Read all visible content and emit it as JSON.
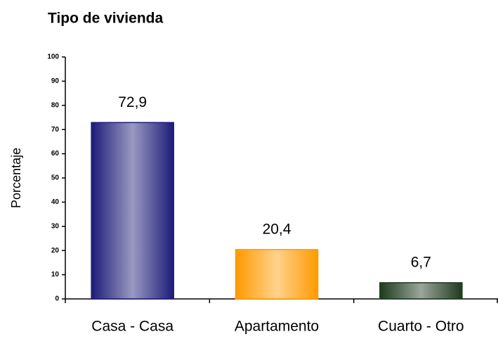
{
  "chart_data": {
    "type": "bar",
    "title": "Tipo de vivienda",
    "y_label": "Porcentaje",
    "categories": [
      "Casa - Casa",
      "Apartamento",
      "Cuarto - Otro"
    ],
    "values": [
      72.9,
      20.4,
      6.7
    ],
    "value_labels": [
      "72,9",
      "20,4",
      "6,7"
    ],
    "colors": [
      "#1c1c78",
      "#ff9a00",
      "#1e3a1e"
    ],
    "ylim": [
      0,
      100
    ],
    "yticks": [
      0,
      10,
      20,
      30,
      40,
      50,
      60,
      70,
      80,
      90,
      100
    ],
    "grid": false
  }
}
